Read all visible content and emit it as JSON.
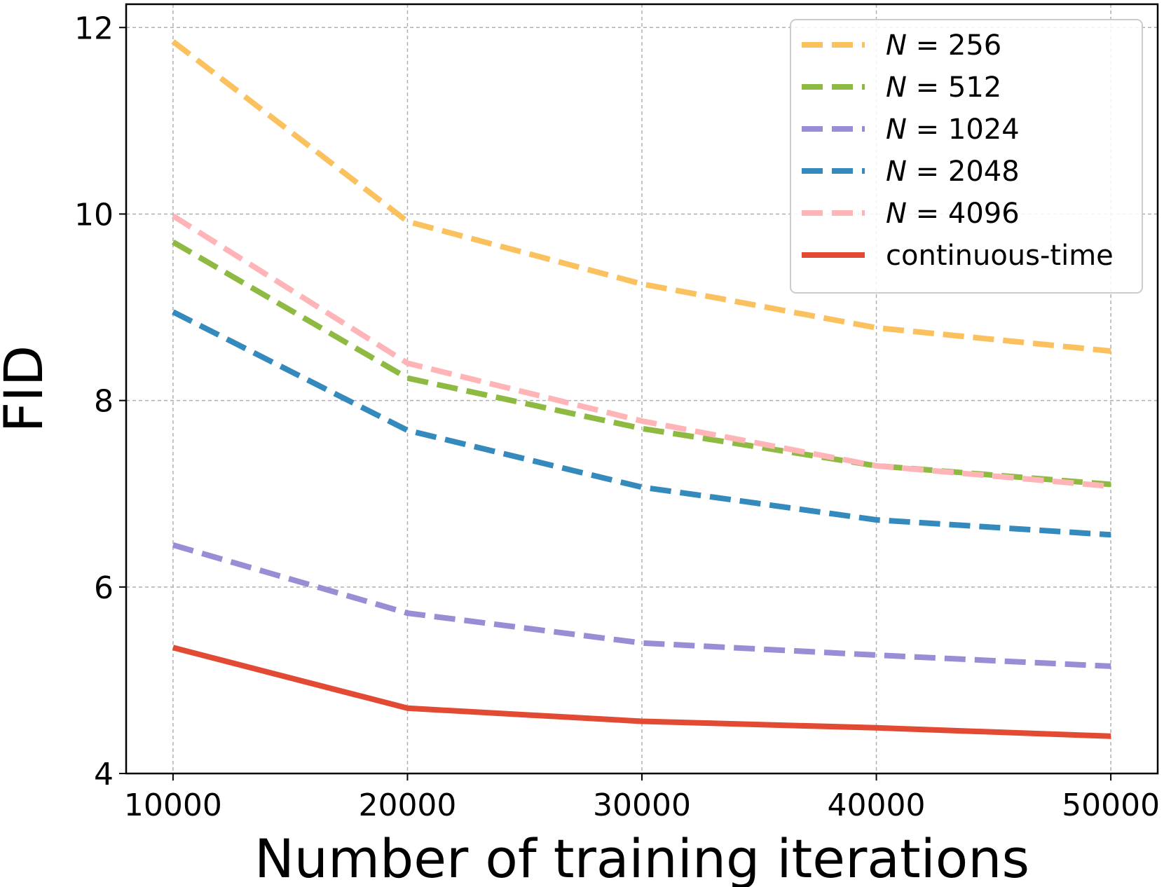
{
  "chart_data": {
    "type": "line",
    "title": "",
    "xlabel": "Number of training iterations",
    "ylabel": "FID",
    "x": [
      10000,
      20000,
      30000,
      40000,
      50000
    ],
    "xlim": [
      8000,
      52000
    ],
    "ylim": [
      4,
      12.25
    ],
    "xticks": [
      10000,
      20000,
      30000,
      40000,
      50000
    ],
    "yticks": [
      4,
      6,
      8,
      10,
      12
    ],
    "xtick_labels": [
      "10000",
      "20000",
      "30000",
      "40000",
      "50000"
    ],
    "ytick_labels": [
      "4",
      "6",
      "8",
      "10",
      "12"
    ],
    "grid": true,
    "legend_position": "top-right",
    "series": [
      {
        "name": "N = 256",
        "prefix": "N",
        "suffix": " = 256",
        "color": "#fbc15e",
        "style": "dashed",
        "values": [
          11.85,
          9.92,
          9.25,
          8.78,
          8.53
        ]
      },
      {
        "name": "N = 512",
        "prefix": "N",
        "suffix": " = 512",
        "color": "#8eba42",
        "style": "dashed",
        "values": [
          9.7,
          8.24,
          7.7,
          7.3,
          7.1
        ]
      },
      {
        "name": "N = 1024",
        "prefix": "N",
        "suffix": " = 1024",
        "color": "#988ed5",
        "style": "dashed",
        "values": [
          6.45,
          5.72,
          5.4,
          5.27,
          5.15
        ]
      },
      {
        "name": "N = 2048",
        "prefix": "N",
        "suffix": " = 2048",
        "color": "#348abd",
        "style": "dashed",
        "values": [
          8.95,
          7.68,
          7.07,
          6.72,
          6.56
        ]
      },
      {
        "name": "N = 4096",
        "prefix": "N",
        "suffix": " = 4096",
        "color": "#ffb5b8",
        "style": "dashed",
        "values": [
          9.98,
          8.4,
          7.78,
          7.3,
          7.08
        ]
      },
      {
        "name": "continuous-time",
        "prefix": "",
        "suffix": "continuous-time",
        "color": "#e24a33",
        "style": "solid",
        "values": [
          5.35,
          4.7,
          4.56,
          4.49,
          4.4
        ]
      }
    ]
  }
}
